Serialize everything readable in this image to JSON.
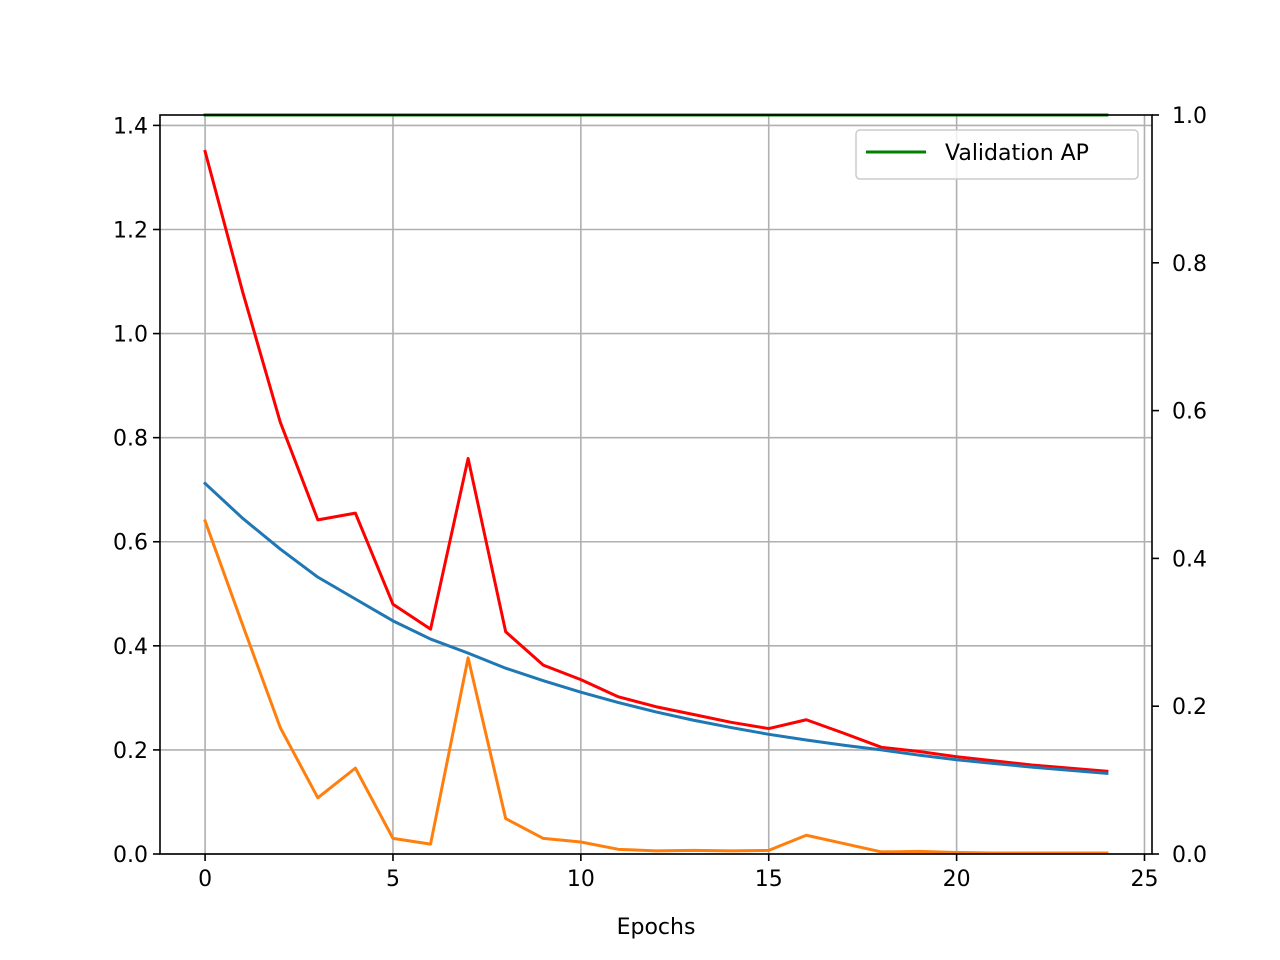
{
  "chart_data": {
    "type": "line",
    "title": "",
    "xlabel": "Epochs",
    "ylabel": "",
    "y2label": "",
    "xlim": [
      -1.2,
      25.2
    ],
    "ylim": [
      0,
      1.42
    ],
    "y2lim": [
      0,
      1.0
    ],
    "grid": true,
    "legend_position": "top-right",
    "x_ticks": [
      0,
      5,
      10,
      15,
      20,
      25
    ],
    "x_tick_labels": [
      "0",
      "5",
      "10",
      "15",
      "20",
      "25"
    ],
    "y_ticks": [
      0.0,
      0.2,
      0.4,
      0.6,
      0.8,
      1.0,
      1.2,
      1.4
    ],
    "y_tick_labels": [
      "0.0",
      "0.2",
      "0.4",
      "0.6",
      "0.8",
      "1.0",
      "1.2",
      "1.4"
    ],
    "y2_ticks": [
      0.0,
      0.2,
      0.4,
      0.6,
      0.8,
      1.0
    ],
    "y2_tick_labels": [
      "0.0",
      "0.2",
      "0.4",
      "0.6",
      "0.8",
      "1.0"
    ],
    "x": [
      0,
      1,
      2,
      3,
      4,
      5,
      6,
      7,
      8,
      9,
      10,
      11,
      12,
      13,
      14,
      15,
      16,
      17,
      18,
      19,
      20,
      21,
      22,
      23,
      24
    ],
    "series": [
      {
        "axis": "left",
        "color": "#ff0000",
        "values": [
          1.35,
          1.08,
          0.83,
          0.642,
          0.655,
          0.48,
          0.432,
          0.76,
          0.427,
          0.363,
          0.335,
          0.302,
          0.283,
          0.268,
          0.253,
          0.241,
          0.258,
          0.232,
          0.205,
          0.197,
          0.187,
          0.179,
          0.171,
          0.165,
          0.159
        ]
      },
      {
        "axis": "left",
        "color": "#1f77b4",
        "values": [
          0.712,
          0.645,
          0.586,
          0.532,
          0.49,
          0.448,
          0.413,
          0.386,
          0.357,
          0.333,
          0.311,
          0.291,
          0.273,
          0.257,
          0.243,
          0.23,
          0.219,
          0.209,
          0.2,
          0.19,
          0.181,
          0.174,
          0.167,
          0.161,
          0.155
        ]
      },
      {
        "axis": "left",
        "color": "#ff7f0e",
        "values": [
          0.64,
          0.44,
          0.243,
          0.108,
          0.165,
          0.03,
          0.019,
          0.377,
          0.068,
          0.03,
          0.023,
          0.009,
          0.006,
          0.007,
          0.006,
          0.007,
          0.036,
          0.02,
          0.004,
          0.005,
          0.003,
          0.002,
          0.002,
          0.002,
          0.002
        ]
      },
      {
        "axis": "right",
        "name": "Validation AP",
        "color": "#008000",
        "values": [
          1.0,
          1.0,
          1.0,
          1.0,
          1.0,
          1.0,
          1.0,
          1.0,
          1.0,
          1.0,
          1.0,
          1.0,
          1.0,
          1.0,
          1.0,
          1.0,
          1.0,
          1.0,
          1.0,
          1.0,
          1.0,
          1.0,
          1.0,
          1.0,
          1.0
        ]
      }
    ],
    "legend": [
      {
        "label": "Validation AP",
        "color": "#008000"
      }
    ]
  }
}
